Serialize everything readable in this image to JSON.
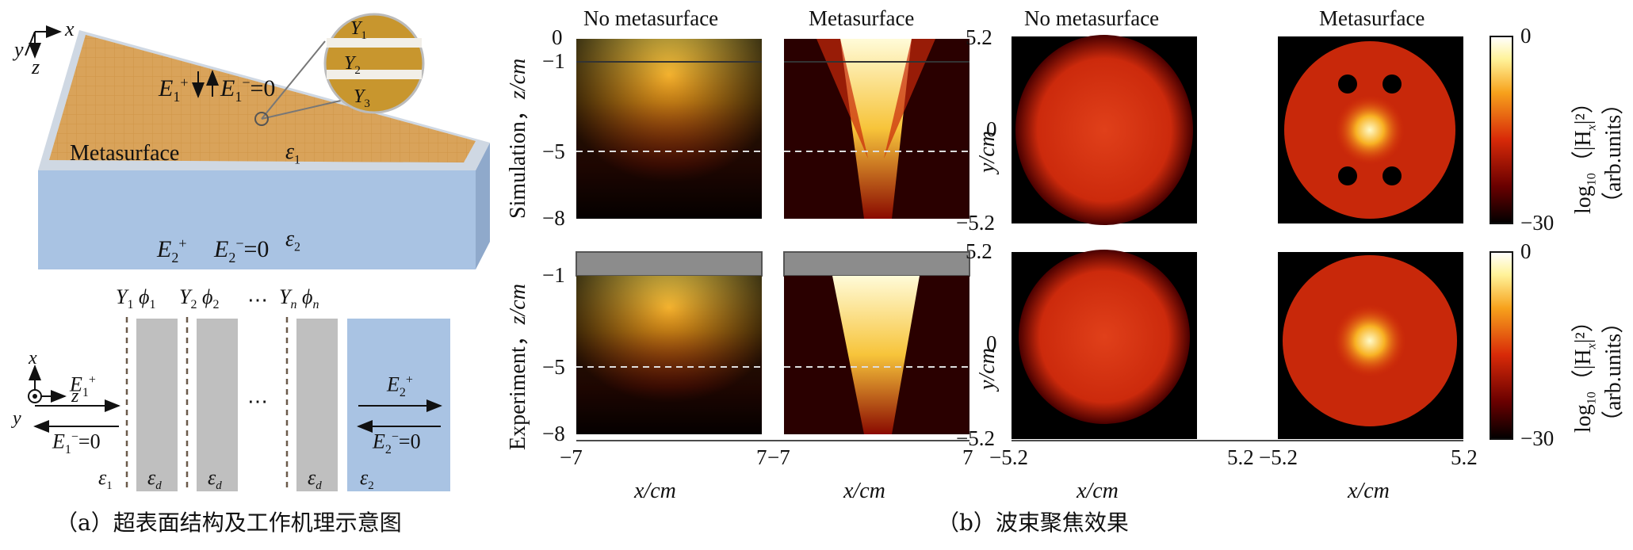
{
  "panel_a": {
    "axes3d": {
      "x": "x",
      "y": "y",
      "z": "z"
    },
    "top_wave": {
      "E1p": "E",
      "E1m": "E",
      "sub1": "1",
      "sup_plus": "+",
      "sup_minus": "−",
      "eq0": "=0"
    },
    "zoom": {
      "Y1": "Y",
      "Y2": "Y",
      "Y3": "Y",
      "s1": "1",
      "s2": "2",
      "s3": "3"
    },
    "metasurface_label": "Metasurface",
    "eps1": "ε",
    "eps1_sub": "1",
    "eps2": "ε",
    "eps2_sub": "2",
    "bottom_wave": {
      "E2p": "E",
      "E2m": "E",
      "sub2": "2",
      "sup_plus": "+",
      "sup_minus": "−",
      "eq0": "=0"
    },
    "schematic": {
      "axes": {
        "x": "x",
        "y": "y",
        "z": "z"
      },
      "Y1": "Y",
      "phi1": "ϕ",
      "s1": "1",
      "Y2": "Y",
      "phi2": "ϕ",
      "s2": "2",
      "dots": "⋯",
      "Yn": "Y",
      "phin": "ϕ",
      "sn": "n",
      "eps_d": "ε",
      "d": "d",
      "eps1": "ε",
      "eps1_sub": "1",
      "eps2": "ε",
      "eps2_sub": "2",
      "E1p": "E",
      "E1m": "E",
      "E2p": "E",
      "E2m": "E",
      "sub1": "1",
      "sub2": "2",
      "plus": "+",
      "minus": "−",
      "eq0": "=0"
    },
    "caption": "（a）超表面结构及工作机理示意图"
  },
  "panel_b": {
    "col_titles": [
      "No metasurface",
      "Metasurface",
      "No metasurface",
      "Metasurface"
    ],
    "row_labels": [
      "Simulation，",
      "Experiment，"
    ],
    "zcm": "z/cm",
    "ycm": "y/cm",
    "xcm": "x/cm",
    "z_ticks_sim": [
      "0",
      "−1",
      "−5",
      "−8"
    ],
    "z_ticks_exp": [
      "−1",
      "−5",
      "−8"
    ],
    "x_ticks_left": [
      "−7",
      "7",
      "−7",
      "7"
    ],
    "y_ticks": [
      "5.2",
      "0",
      "−5.2"
    ],
    "x_ticks_right": [
      "−5.2",
      "5.2",
      "−5.2",
      "5.2"
    ],
    "colorbar_ticks": [
      "0",
      "−30"
    ],
    "colorbar_label": "log",
    "colorbar_label_sub": "10",
    "colorbar_label_rest": "（|H",
    "colorbar_label_x": "x",
    "colorbar_label_end": "|²）",
    "colorbar_units": "（arb.units）",
    "caption": "（b）波束聚焦效果"
  },
  "colors": {
    "hot_dark": "#1a0000",
    "hot_red": "#c81e0a",
    "hot_yellow": "#fff5b0",
    "slab_blue": "#a9c3e3",
    "metasurface": "#d9a35a",
    "gray": "#bfbfbf"
  }
}
